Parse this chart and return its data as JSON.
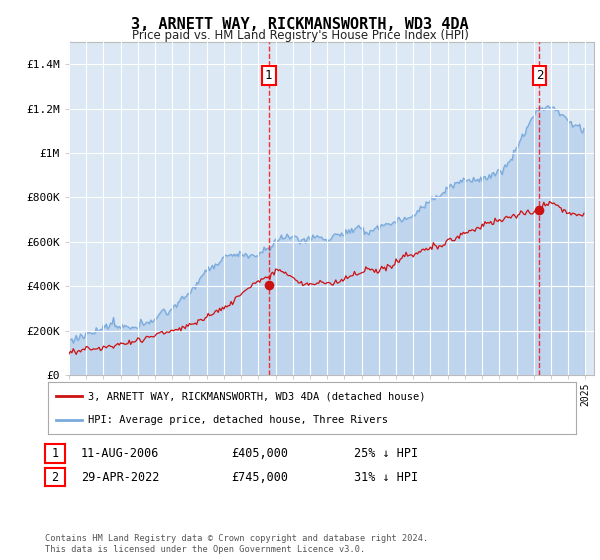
{
  "title": "3, ARNETT WAY, RICKMANSWORTH, WD3 4DA",
  "subtitle": "Price paid vs. HM Land Registry's House Price Index (HPI)",
  "background_color": "#dce9f5",
  "fig_bg_color": "#ffffff",
  "ylim": [
    0,
    1500000
  ],
  "yticks": [
    0,
    200000,
    400000,
    600000,
    800000,
    1000000,
    1200000,
    1400000
  ],
  "ytick_labels": [
    "£0",
    "£200K",
    "£400K",
    "£600K",
    "£800K",
    "£1M",
    "£1.2M",
    "£1.4M"
  ],
  "hpi_color": "#7aaadd",
  "price_color": "#cc1111",
  "transaction1_x": 2006.6,
  "transaction1_y": 405000,
  "transaction2_x": 2022.33,
  "transaction2_y": 745000,
  "legend_line1": "3, ARNETT WAY, RICKMANSWORTH, WD3 4DA (detached house)",
  "legend_line2": "HPI: Average price, detached house, Three Rivers",
  "table_row1": [
    "1",
    "11-AUG-2006",
    "£405,000",
    "25% ↓ HPI"
  ],
  "table_row2": [
    "2",
    "29-APR-2022",
    "£745,000",
    "31% ↓ HPI"
  ],
  "footer": "Contains HM Land Registry data © Crown copyright and database right 2024.\nThis data is licensed under the Open Government Licence v3.0.",
  "xmin": 1995,
  "xmax": 2025.5
}
